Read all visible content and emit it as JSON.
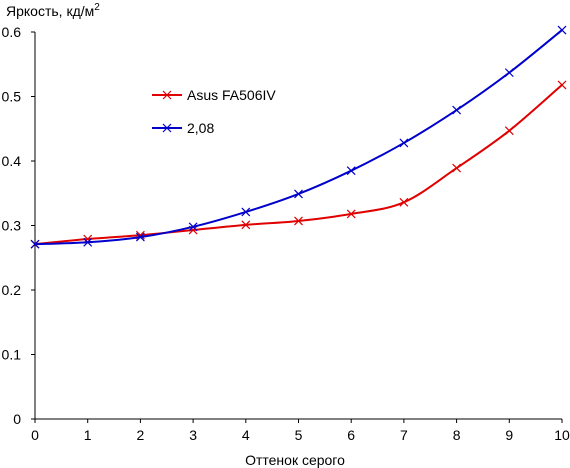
{
  "chart_data": {
    "type": "line",
    "ylabel": "Яркость, кд/м",
    "ylabel_superscript": "2",
    "xlabel": "Оттенок серого",
    "xlim": [
      0,
      10
    ],
    "ylim": [
      0,
      0.6
    ],
    "x_ticks": [
      "0",
      "1",
      "2",
      "3",
      "4",
      "5",
      "6",
      "7",
      "8",
      "9",
      "10"
    ],
    "y_ticks": [
      "0",
      "0.1",
      "0.2",
      "0.3",
      "0.4",
      "0.5",
      "0.6"
    ],
    "grid": false,
    "legend_position": "upper-left inside plot",
    "x": [
      0,
      1,
      2,
      3,
      4,
      5,
      6,
      7,
      8,
      9,
      10
    ],
    "series": [
      {
        "name": "Asus FA506IV",
        "color": "#e00000",
        "marker": "x",
        "values": [
          0.271,
          0.279,
          0.285,
          0.293,
          0.301,
          0.307,
          0.318,
          0.336,
          0.389,
          0.447,
          0.518
        ]
      },
      {
        "name": "2,08",
        "color": "#0000cc",
        "marker": "x",
        "values": [
          0.271,
          0.274,
          0.282,
          0.298,
          0.321,
          0.349,
          0.385,
          0.428,
          0.479,
          0.537,
          0.603
        ]
      }
    ]
  }
}
